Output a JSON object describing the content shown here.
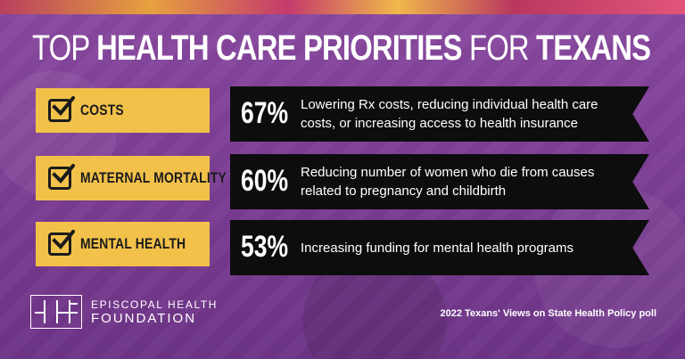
{
  "title": {
    "part1": "TOP ",
    "part2": "HEALTH CARE PRIORITIES",
    "part3": " FOR ",
    "part4": "TEXANS"
  },
  "priorities": [
    {
      "label": "COSTS",
      "percent": "67%",
      "value": 67,
      "description": "Lowering Rx costs, reducing individual health care costs, or increasing access to health insurance"
    },
    {
      "label": "MATERNAL MORTALITY",
      "percent": "60%",
      "value": 60,
      "description": "Reducing number of women who die from causes related to pregnancy and childbirth"
    },
    {
      "label": "MENTAL HEALTH",
      "percent": "53%",
      "value": 53,
      "description": "Increasing funding for mental health programs"
    }
  ],
  "icons": {
    "row_marker": "checkbox-checked-icon"
  },
  "footer": {
    "logo_line1": "EPISCOPAL HEALTH",
    "logo_line2": "FOUNDATION",
    "source": "2022 Texans' Views on State Health Policy poll"
  },
  "colors": {
    "background": "#7d3f95",
    "label_box": "#f2c14a",
    "banner": "#0d0d0d",
    "text": "#ffffff"
  }
}
